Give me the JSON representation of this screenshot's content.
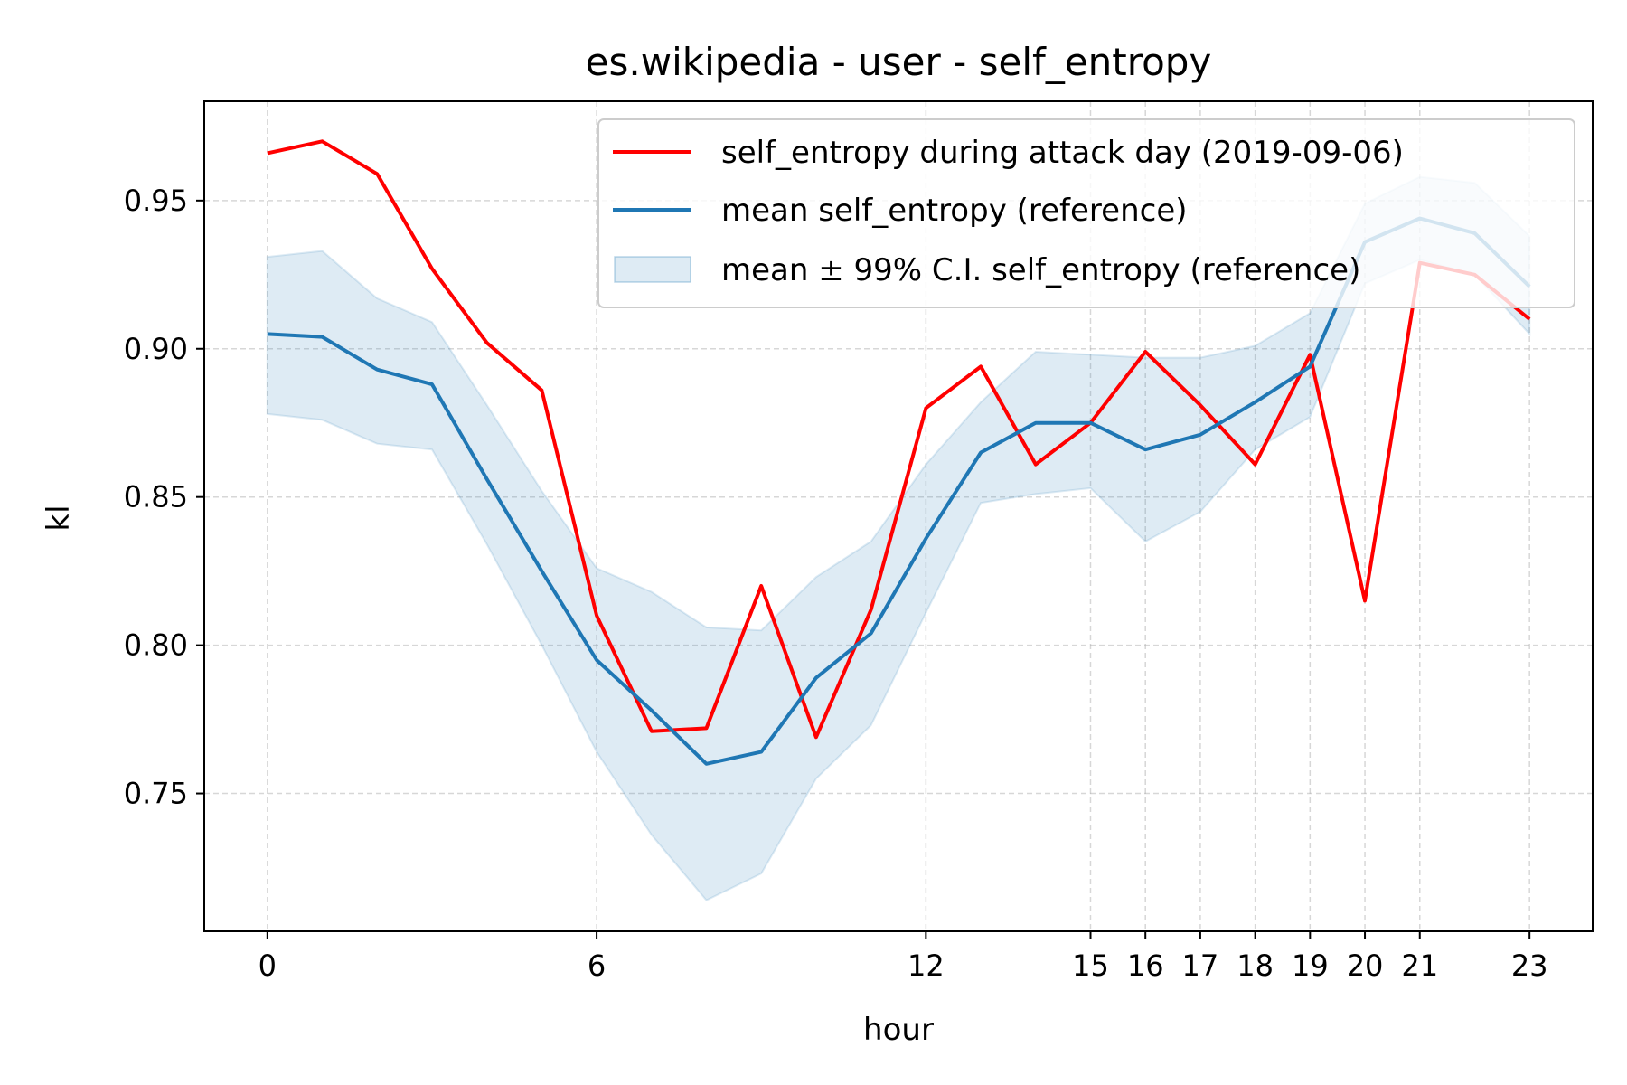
{
  "chart_data": {
    "type": "line",
    "title": "es.wikipedia - user - self_entropy",
    "xlabel": "hour",
    "ylabel": "kl",
    "x": [
      0,
      1,
      2,
      3,
      4,
      5,
      6,
      7,
      8,
      9,
      10,
      11,
      12,
      13,
      14,
      15,
      16,
      17,
      18,
      19,
      20,
      21,
      22,
      23
    ],
    "xticks": [
      0,
      6,
      12,
      15,
      16,
      17,
      18,
      19,
      20,
      21,
      23
    ],
    "yticks": [
      0.75,
      0.8,
      0.85,
      0.9,
      0.95
    ],
    "ytick_labels": [
      "0.75",
      "0.80",
      "0.85",
      "0.90",
      "0.95"
    ],
    "xlim": [
      -1.15,
      24.15
    ],
    "ylim": [
      0.7035,
      0.9835
    ],
    "grid": true,
    "legend_position": "top-right",
    "series": [
      {
        "name": "self_entropy during attack day (2019-09-06)",
        "color": "#ff0000",
        "values": [
          0.966,
          0.97,
          0.959,
          0.927,
          0.902,
          0.886,
          0.81,
          0.771,
          0.772,
          0.82,
          0.769,
          0.812,
          0.88,
          0.894,
          0.861,
          0.875,
          0.899,
          0.881,
          0.861,
          0.898,
          0.815,
          0.929,
          0.925,
          0.91
        ]
      },
      {
        "name": "mean self_entropy (reference)",
        "color": "#1f77b4",
        "values": [
          0.905,
          0.904,
          0.893,
          0.888,
          0.856,
          0.825,
          0.795,
          0.778,
          0.76,
          0.764,
          0.789,
          0.804,
          0.836,
          0.865,
          0.875,
          0.875,
          0.866,
          0.871,
          0.882,
          0.894,
          0.936,
          0.944,
          0.939,
          0.921
        ]
      }
    ],
    "band": {
      "name": "mean ± 99% C.I. self_entropy (reference)",
      "color": "#1f77b4",
      "lower": [
        0.878,
        0.876,
        0.868,
        0.866,
        0.834,
        0.8,
        0.764,
        0.736,
        0.714,
        0.723,
        0.755,
        0.773,
        0.811,
        0.848,
        0.851,
        0.853,
        0.835,
        0.845,
        0.866,
        0.877,
        0.922,
        0.93,
        0.925,
        0.905
      ],
      "upper": [
        0.931,
        0.933,
        0.917,
        0.909,
        0.881,
        0.852,
        0.826,
        0.818,
        0.806,
        0.805,
        0.823,
        0.835,
        0.861,
        0.882,
        0.899,
        0.898,
        0.897,
        0.897,
        0.901,
        0.912,
        0.949,
        0.958,
        0.956,
        0.938
      ]
    }
  }
}
